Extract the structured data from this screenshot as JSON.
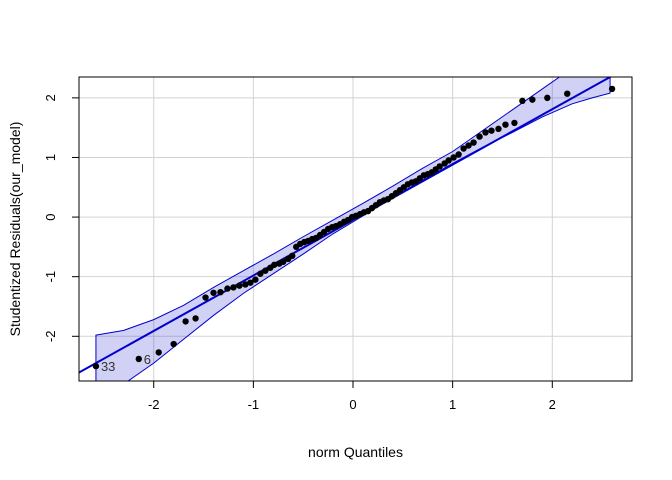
{
  "chart_data": {
    "type": "scatter",
    "subtype": "qq-plot",
    "title": "",
    "xlabel": "norm Quantiles",
    "ylabel": "Studentized Residuals(our_model)",
    "xlim": [
      -2.75,
      2.8
    ],
    "ylim": [
      -2.75,
      2.35
    ],
    "xticks": [
      -2,
      -1,
      0,
      1,
      2
    ],
    "yticks": [
      -2,
      -1,
      0,
      1,
      2
    ],
    "xtick_labels": [
      "-2",
      "-1",
      "0",
      "1",
      "2"
    ],
    "ytick_labels": [
      "-2",
      "-1",
      "0",
      "1",
      "2"
    ],
    "grid": true,
    "reference_line": {
      "slope": 0.93,
      "intercept": -0.05,
      "color": "#0000CD"
    },
    "envelope": {
      "color": "#0000CD",
      "fill_opacity": 0.18,
      "x": [
        -2.58,
        -2.3,
        -2.0,
        -1.7,
        -1.4,
        -1.1,
        -0.8,
        -0.5,
        -0.2,
        0.1,
        0.4,
        0.7,
        1.0,
        1.3,
        1.6,
        1.9,
        2.2,
        2.4,
        2.58
      ],
      "lower": [
        -2.98,
        -2.8,
        -2.45,
        -2.05,
        -1.65,
        -1.28,
        -0.95,
        -0.62,
        -0.28,
        0.02,
        0.33,
        0.62,
        0.9,
        1.17,
        1.42,
        1.68,
        1.9,
        2.0,
        2.08
      ],
      "upper": [
        -1.98,
        -1.9,
        -1.72,
        -1.48,
        -1.18,
        -0.9,
        -0.62,
        -0.33,
        -0.05,
        0.23,
        0.52,
        0.82,
        1.1,
        1.45,
        1.8,
        2.15,
        2.5,
        2.8,
        3.1
      ]
    },
    "points": {
      "color": "#000000",
      "x": [
        -2.58,
        -2.15,
        -1.95,
        -1.8,
        -1.68,
        -1.58,
        -1.48,
        -1.4,
        -1.33,
        -1.26,
        -1.2,
        -1.14,
        -1.08,
        -1.03,
        -0.98,
        -0.93,
        -0.88,
        -0.83,
        -0.79,
        -0.74,
        -0.7,
        -0.65,
        -0.61,
        -0.57,
        -0.53,
        -0.49,
        -0.45,
        -0.41,
        -0.37,
        -0.33,
        -0.29,
        -0.25,
        -0.21,
        -0.17,
        -0.13,
        -0.09,
        -0.05,
        -0.01,
        0.03,
        0.07,
        0.11,
        0.15,
        0.19,
        0.23,
        0.27,
        0.31,
        0.35,
        0.39,
        0.43,
        0.47,
        0.51,
        0.55,
        0.59,
        0.63,
        0.67,
        0.71,
        0.75,
        0.79,
        0.83,
        0.87,
        0.92,
        0.96,
        1.01,
        1.06,
        1.11,
        1.16,
        1.21,
        1.27,
        1.33,
        1.39,
        1.46,
        1.53,
        1.62,
        1.7,
        1.8,
        1.95,
        2.15,
        2.6
      ],
      "y": [
        -2.5,
        -2.38,
        -2.27,
        -2.13,
        -1.75,
        -1.7,
        -1.35,
        -1.27,
        -1.26,
        -1.2,
        -1.18,
        -1.15,
        -1.13,
        -1.1,
        -1.05,
        -0.95,
        -0.9,
        -0.85,
        -0.8,
        -0.78,
        -0.75,
        -0.7,
        -0.65,
        -0.5,
        -0.45,
        -0.42,
        -0.4,
        -0.37,
        -0.35,
        -0.3,
        -0.25,
        -0.2,
        -0.17,
        -0.15,
        -0.12,
        -0.08,
        -0.05,
        0.0,
        0.02,
        0.05,
        0.08,
        0.1,
        0.15,
        0.2,
        0.25,
        0.28,
        0.3,
        0.35,
        0.4,
        0.45,
        0.5,
        0.55,
        0.58,
        0.6,
        0.65,
        0.7,
        0.72,
        0.75,
        0.8,
        0.85,
        0.9,
        0.95,
        1.0,
        1.05,
        1.15,
        1.2,
        1.25,
        1.35,
        1.42,
        1.45,
        1.48,
        1.55,
        1.58,
        1.95,
        1.97,
        2.0,
        2.07,
        2.15
      ]
    },
    "point_labels": [
      {
        "label": "33",
        "x": -2.58,
        "y": -2.5
      },
      {
        "label": "6",
        "x": -2.15,
        "y": -2.38
      }
    ]
  }
}
